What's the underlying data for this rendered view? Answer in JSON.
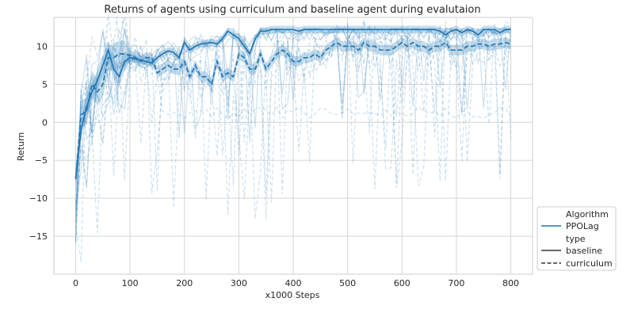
{
  "chart_data": {
    "type": "line",
    "title": "Returns of agents using curriculum and baseline agent during evalutaion",
    "xlabel": "x1000 Steps",
    "ylabel": "Return",
    "xlim": [
      -40,
      840
    ],
    "ylim": [
      -20,
      13.8
    ],
    "xticks": [
      0,
      100,
      200,
      300,
      400,
      500,
      600,
      700,
      800
    ],
    "yticks": [
      -15,
      -10,
      -5,
      0,
      5,
      10
    ],
    "grid": true,
    "legend_placement": "right, outside plot",
    "legend": {
      "hue_title": "Algorithm",
      "hue_items": [
        {
          "label": "PPOLag",
          "color": "#1f77b4"
        }
      ],
      "style_title": "type",
      "style_items": [
        {
          "label": "baseline",
          "dash": "solid"
        },
        {
          "label": "curriculum",
          "dash": "dashed"
        }
      ]
    },
    "series": [
      {
        "name": "baseline",
        "color": "#1f77b4",
        "dash": "solid",
        "x": [
          0,
          10,
          20,
          30,
          40,
          50,
          60,
          70,
          80,
          90,
          100,
          110,
          120,
          130,
          140,
          150,
          160,
          170,
          180,
          190,
          200,
          210,
          220,
          230,
          240,
          250,
          260,
          270,
          280,
          290,
          300,
          310,
          320,
          330,
          340,
          350,
          360,
          370,
          380,
          390,
          400,
          410,
          420,
          430,
          440,
          450,
          460,
          470,
          480,
          490,
          500,
          510,
          520,
          530,
          540,
          550,
          560,
          570,
          580,
          590,
          600,
          610,
          620,
          630,
          640,
          650,
          660,
          670,
          680,
          690,
          700,
          710,
          720,
          730,
          740,
          750,
          760,
          770,
          780,
          790,
          800
        ],
        "values": [
          -7.3,
          -1,
          2,
          4,
          5.5,
          7.5,
          9.5,
          7,
          6,
          8,
          8.5,
          8.3,
          8.2,
          8,
          7.8,
          8.5,
          9,
          9.4,
          9.2,
          8.5,
          10.5,
          9.5,
          10,
          10.3,
          10.4,
          10.5,
          10.3,
          11,
          12,
          11.5,
          11,
          10,
          9,
          11,
          12,
          12,
          12.2,
          12.2,
          12.2,
          12.2,
          12.2,
          12,
          12.2,
          12.2,
          12.2,
          12.2,
          12.2,
          12.2,
          12.2,
          12.2,
          12.2,
          12.2,
          12.2,
          12.2,
          12.2,
          12.2,
          12.2,
          12.2,
          12.2,
          12.2,
          12.2,
          12.2,
          12.2,
          12.2,
          12.2,
          12.2,
          12.2,
          12,
          11.5,
          12,
          12.2,
          11.8,
          12.2,
          12,
          11.5,
          12.2,
          12.2,
          12.2,
          11.8,
          12.2,
          12.2
        ],
        "ci_half_width": 0.5
      },
      {
        "name": "curriculum",
        "color": "#1f77b4",
        "dash": "dashed",
        "x": [
          0,
          10,
          20,
          30,
          40,
          50,
          60,
          70,
          80,
          90,
          100,
          110,
          120,
          130,
          140,
          150,
          160,
          170,
          180,
          190,
          200,
          210,
          220,
          230,
          240,
          250,
          260,
          270,
          280,
          290,
          300,
          310,
          320,
          330,
          340,
          350,
          360,
          370,
          380,
          390,
          400,
          410,
          420,
          430,
          440,
          450,
          460,
          470,
          480,
          490,
          500,
          510,
          520,
          530,
          540,
          550,
          560,
          570,
          580,
          590,
          600,
          610,
          620,
          630,
          640,
          650,
          660,
          670,
          680,
          690,
          700,
          710,
          720,
          730,
          740,
          750,
          760,
          770,
          780,
          790,
          800
        ],
        "values": [
          -7.5,
          1,
          1.5,
          5,
          4,
          5,
          8.5,
          8.5,
          9,
          9,
          8.8,
          8.5,
          8,
          8.5,
          8.5,
          6.5,
          7,
          7.5,
          7,
          7,
          8,
          6,
          7.5,
          6,
          6,
          5,
          8,
          6,
          6.5,
          6,
          9,
          8.5,
          7,
          7,
          9,
          7,
          8,
          9,
          9.5,
          9,
          8,
          8,
          8.5,
          8.5,
          9,
          8.5,
          9.5,
          10,
          10.5,
          10,
          10,
          10,
          9.5,
          10.5,
          10,
          10,
          9.5,
          9.5,
          9.5,
          10,
          10.5,
          10,
          10.5,
          10,
          10,
          9.5,
          10,
          10,
          10.5,
          9.5,
          9.5,
          9.5,
          10,
          10,
          10.3,
          10.3,
          10,
          10.3,
          10.3,
          10.5,
          10.3
        ],
        "ci_half_width": 0.7
      }
    ],
    "background_runs_note": "faint per-run traces omitted from data"
  }
}
